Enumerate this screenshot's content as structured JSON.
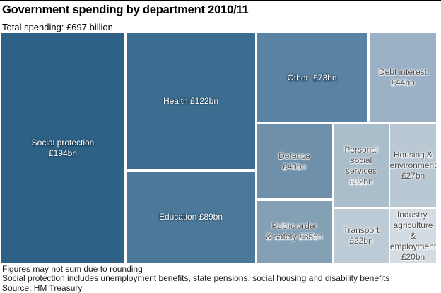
{
  "header": {
    "title": "Government spending by department 2010/11",
    "subtitle": "Total spending: £697 billion"
  },
  "footer": {
    "note1": "Figures may not sum due to rounding",
    "note2": "Social protection includes unemployment benefits, state pensions, social housing and disability benefits",
    "source": "Source: HM Treasury"
  },
  "chart_data": {
    "type": "treemap",
    "title": "Government spending by department 2010/11",
    "subtitle": "Total spending: £697 billion",
    "total_billion_gbp": 697,
    "unit": "£bn",
    "legend_position": "none",
    "items": [
      {
        "name": "Social protection",
        "value": 194,
        "label": "Social protection\n£194bn",
        "color": "#2E6186",
        "label_tone": "light"
      },
      {
        "name": "Health",
        "value": 122,
        "label": "Health £122bn",
        "color": "#3C6D90",
        "label_tone": "light"
      },
      {
        "name": "Education",
        "value": 89,
        "label": "Education £89bn",
        "color": "#4C7899",
        "label_tone": "light"
      },
      {
        "name": "Other",
        "value": 73,
        "label": "Other  £73bn",
        "color": "#5A82A2",
        "label_tone": "light"
      },
      {
        "name": "Debt interest",
        "value": 44,
        "label": "Debt interest\n£44bn",
        "color": "#9BB1C5",
        "label_tone": "dark"
      },
      {
        "name": "Defence",
        "value": 40,
        "label": "Defence\n£40bn",
        "color": "#6E90AA",
        "label_tone": "dark"
      },
      {
        "name": "Personal social services",
        "value": 32,
        "label": "Personal\nsocial\nservices\n£32bn",
        "color": "#A9BDCB",
        "label_tone": "dark"
      },
      {
        "name": "Housing & environment",
        "value": 27,
        "label": "Housing &\nenvironment\n£27bn",
        "color": "#BAC8D3",
        "label_tone": "dark"
      },
      {
        "name": "Public order & safety",
        "value": 35,
        "label": "Public order\n& safety £35bn",
        "color": "#84A0B5",
        "label_tone": "dark"
      },
      {
        "name": "Transport",
        "value": 22,
        "label": "Transport\n£22bn",
        "color": "#BCCBD5",
        "label_tone": "dark"
      },
      {
        "name": "Industry, agriculture & employment",
        "value": 20,
        "label": "Industry,\nagriculture &\nemployment\n£20bn",
        "color": "#D4DCE3",
        "label_tone": "dark"
      }
    ]
  }
}
